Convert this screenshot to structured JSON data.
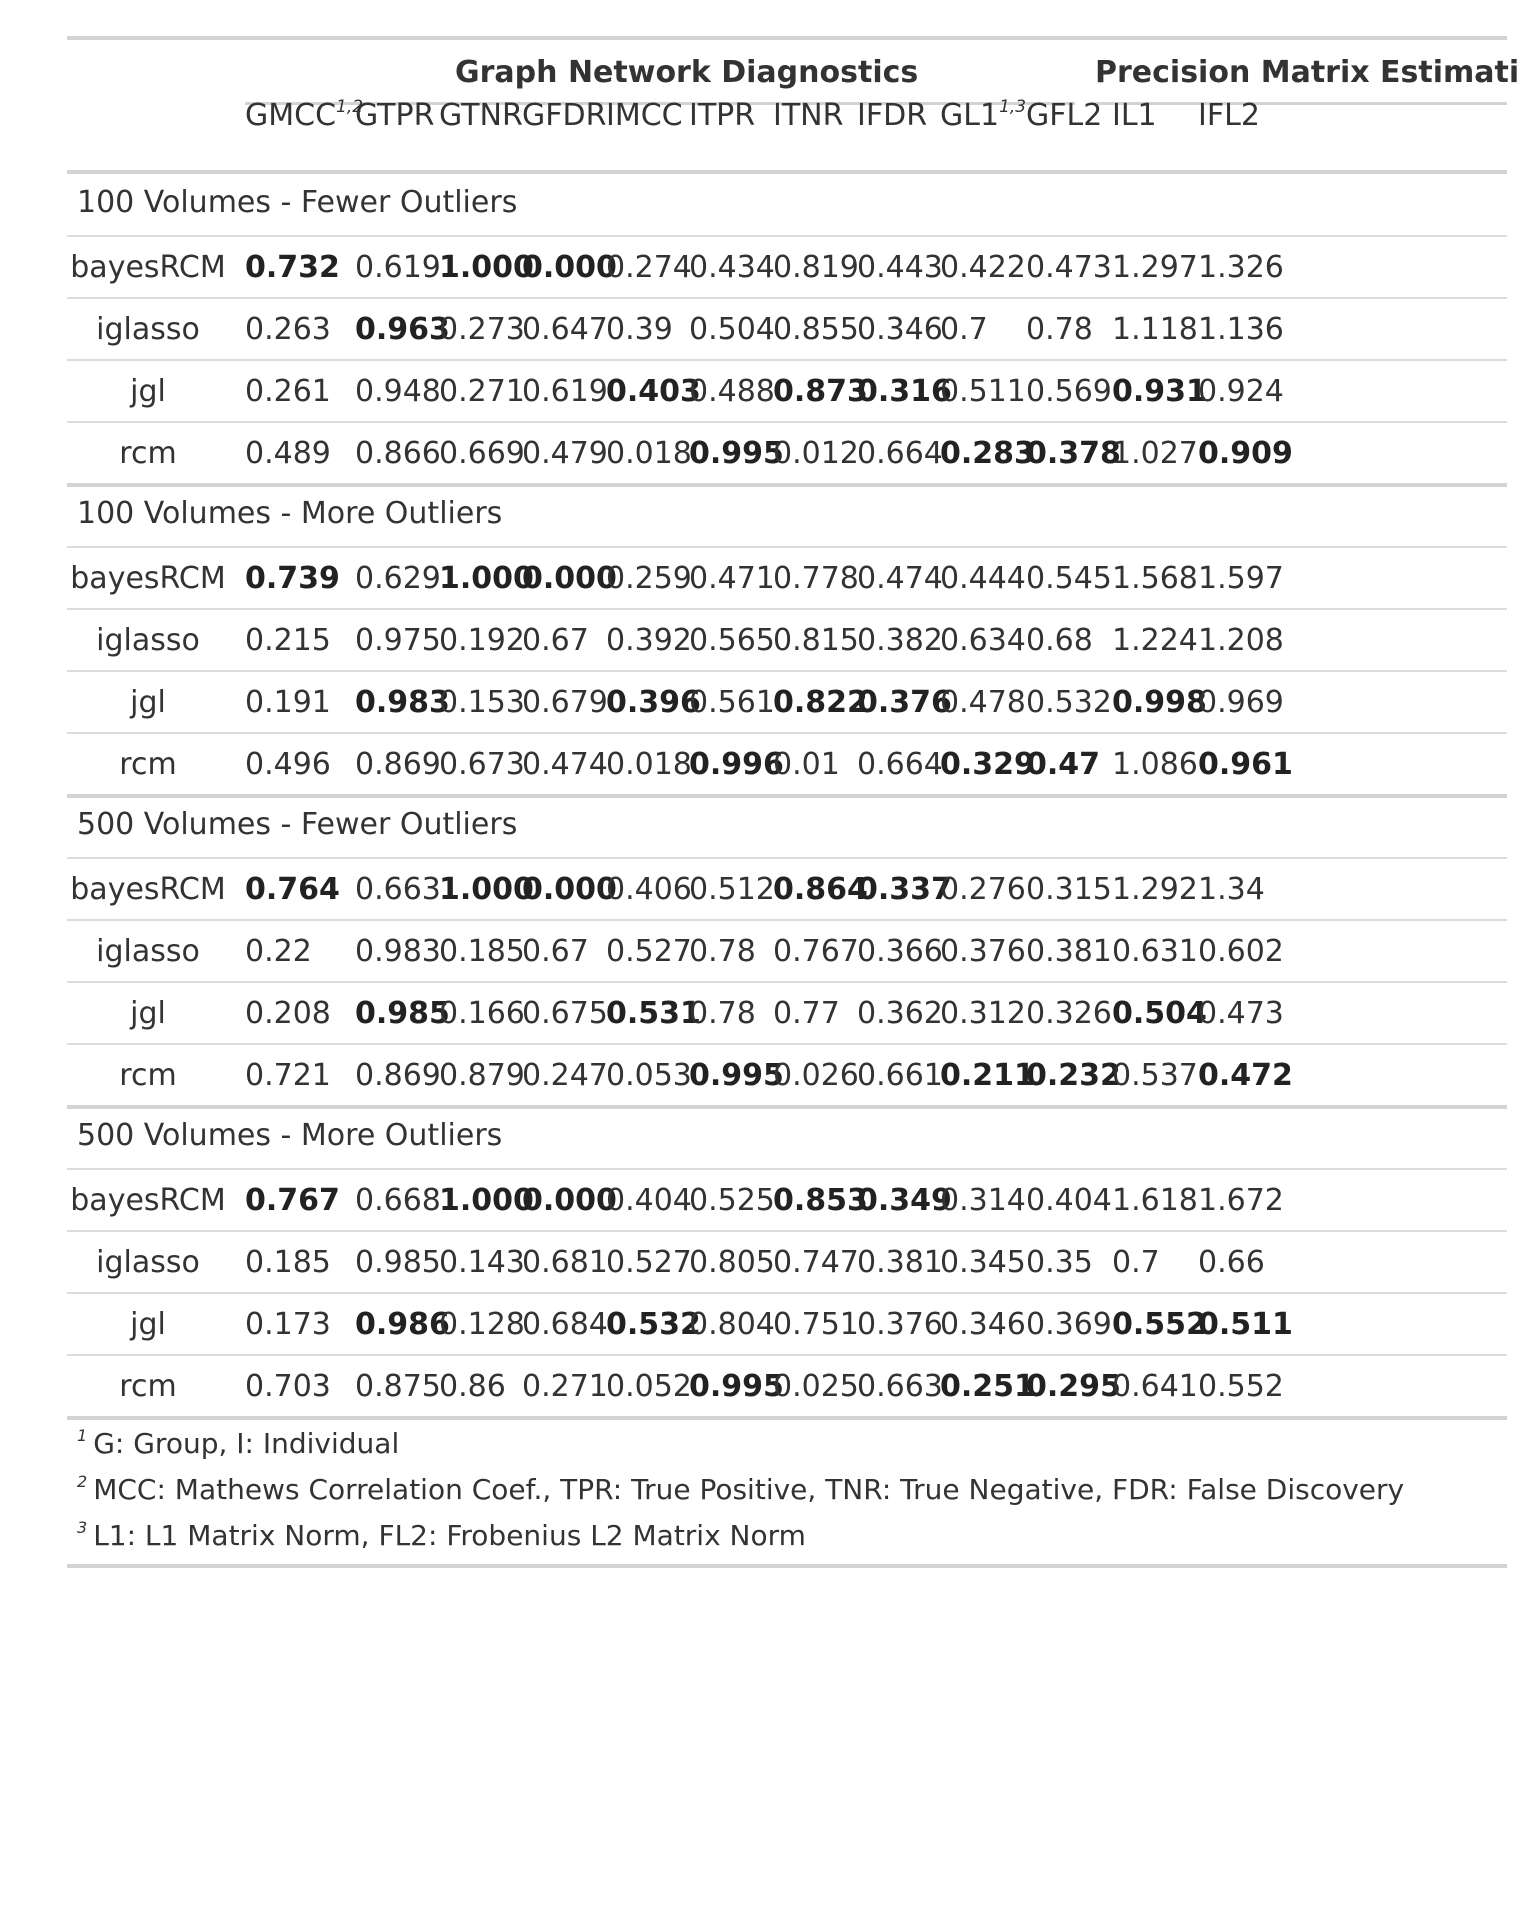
{
  "spanners": [
    "Graph Network Diagnostics",
    "Precision Matrix Estimation"
  ],
  "columns": [
    {
      "label": "GMCC",
      "sup": "1,2"
    },
    {
      "label": "GTPR",
      "sup": ""
    },
    {
      "label": "GTNR",
      "sup": ""
    },
    {
      "label": "GFDR",
      "sup": ""
    },
    {
      "label": "IMCC",
      "sup": ""
    },
    {
      "label": "ITPR",
      "sup": ""
    },
    {
      "label": "ITNR",
      "sup": ""
    },
    {
      "label": "IFDR",
      "sup": ""
    },
    {
      "label": "GL1",
      "sup": "1,3"
    },
    {
      "label": "GFL2",
      "sup": ""
    },
    {
      "label": "IL1",
      "sup": ""
    },
    {
      "label": "IFL2",
      "sup": ""
    }
  ],
  "groups": [
    {
      "label": "100 Volumes - Fewer Outliers",
      "rows": [
        {
          "method": "bayesRCM",
          "values": [
            "0.732",
            "0.619",
            "1.000",
            "0.000",
            "0.274",
            "0.434",
            "0.819",
            "0.443",
            "0.422",
            "0.473",
            "1.297",
            "1.326"
          ],
          "bold": [
            0,
            2,
            3
          ]
        },
        {
          "method": "iglasso",
          "values": [
            "0.263",
            "0.963",
            "0.273",
            "0.647",
            "0.39",
            "0.504",
            "0.855",
            "0.346",
            "0.7",
            "0.78",
            "1.118",
            "1.136"
          ],
          "bold": [
            1
          ]
        },
        {
          "method": "jgl",
          "values": [
            "0.261",
            "0.948",
            "0.271",
            "0.619",
            "0.403",
            "0.488",
            "0.873",
            "0.316",
            "0.511",
            "0.569",
            "0.931",
            "0.924"
          ],
          "bold": [
            4,
            6,
            7,
            10
          ]
        },
        {
          "method": "rcm",
          "values": [
            "0.489",
            "0.866",
            "0.669",
            "0.479",
            "0.018",
            "0.995",
            "0.012",
            "0.664",
            "0.283",
            "0.378",
            "1.027",
            "0.909"
          ],
          "bold": [
            5,
            8,
            9,
            11
          ]
        }
      ]
    },
    {
      "label": "100 Volumes - More Outliers",
      "rows": [
        {
          "method": "bayesRCM",
          "values": [
            "0.739",
            "0.629",
            "1.000",
            "0.000",
            "0.259",
            "0.471",
            "0.778",
            "0.474",
            "0.444",
            "0.545",
            "1.568",
            "1.597"
          ],
          "bold": [
            0,
            2,
            3
          ]
        },
        {
          "method": "iglasso",
          "values": [
            "0.215",
            "0.975",
            "0.192",
            "0.67",
            "0.392",
            "0.565",
            "0.815",
            "0.382",
            "0.634",
            "0.68",
            "1.224",
            "1.208"
          ],
          "bold": []
        },
        {
          "method": "jgl",
          "values": [
            "0.191",
            "0.983",
            "0.153",
            "0.679",
            "0.396",
            "0.561",
            "0.822",
            "0.376",
            "0.478",
            "0.532",
            "0.998",
            "0.969"
          ],
          "bold": [
            1,
            4,
            6,
            7,
            10
          ]
        },
        {
          "method": "rcm",
          "values": [
            "0.496",
            "0.869",
            "0.673",
            "0.474",
            "0.018",
            "0.996",
            "0.01",
            "0.664",
            "0.329",
            "0.47",
            "1.086",
            "0.961"
          ],
          "bold": [
            5,
            8,
            9,
            11
          ]
        }
      ]
    },
    {
      "label": "500 Volumes - Fewer Outliers",
      "rows": [
        {
          "method": "bayesRCM",
          "values": [
            "0.764",
            "0.663",
            "1.000",
            "0.000",
            "0.406",
            "0.512",
            "0.864",
            "0.337",
            "0.276",
            "0.315",
            "1.292",
            "1.34"
          ],
          "bold": [
            0,
            2,
            3,
            6,
            7
          ]
        },
        {
          "method": "iglasso",
          "values": [
            "0.22",
            "0.983",
            "0.185",
            "0.67",
            "0.527",
            "0.78",
            "0.767",
            "0.366",
            "0.376",
            "0.381",
            "0.631",
            "0.602"
          ],
          "bold": []
        },
        {
          "method": "jgl",
          "values": [
            "0.208",
            "0.985",
            "0.166",
            "0.675",
            "0.531",
            "0.78",
            "0.77",
            "0.362",
            "0.312",
            "0.326",
            "0.504",
            "0.473"
          ],
          "bold": [
            1,
            4,
            10
          ]
        },
        {
          "method": "rcm",
          "values": [
            "0.721",
            "0.869",
            "0.879",
            "0.247",
            "0.053",
            "0.995",
            "0.026",
            "0.661",
            "0.211",
            "0.232",
            "0.537",
            "0.472"
          ],
          "bold": [
            5,
            8,
            9,
            11
          ]
        }
      ]
    },
    {
      "label": "500 Volumes - More Outliers",
      "rows": [
        {
          "method": "bayesRCM",
          "values": [
            "0.767",
            "0.668",
            "1.000",
            "0.000",
            "0.404",
            "0.525",
            "0.853",
            "0.349",
            "0.314",
            "0.404",
            "1.618",
            "1.672"
          ],
          "bold": [
            0,
            2,
            3,
            6,
            7
          ]
        },
        {
          "method": "iglasso",
          "values": [
            "0.185",
            "0.985",
            "0.143",
            "0.681",
            "0.527",
            "0.805",
            "0.747",
            "0.381",
            "0.345",
            "0.35",
            "0.7",
            "0.66"
          ],
          "bold": []
        },
        {
          "method": "jgl",
          "values": [
            "0.173",
            "0.986",
            "0.128",
            "0.684",
            "0.532",
            "0.804",
            "0.751",
            "0.376",
            "0.346",
            "0.369",
            "0.552",
            "0.511"
          ],
          "bold": [
            1,
            4,
            10,
            11
          ]
        },
        {
          "method": "rcm",
          "values": [
            "0.703",
            "0.875",
            "0.86",
            "0.271",
            "0.052",
            "0.995",
            "0.025",
            "0.663",
            "0.251",
            "0.295",
            "0.641",
            "0.552"
          ],
          "bold": [
            5,
            8,
            9
          ]
        }
      ]
    }
  ],
  "footnotes": [
    {
      "mark": "1",
      "text": "G: Group, I: Individual"
    },
    {
      "mark": "2",
      "text": "MCC: Mathews Correlation Coef., TPR: True Positive, TNR: True Negative, FDR: False Discovery"
    },
    {
      "mark": "3",
      "text": "L1: L1 Matrix Norm, FL2: Frobenius L2 Matrix Norm"
    }
  ]
}
